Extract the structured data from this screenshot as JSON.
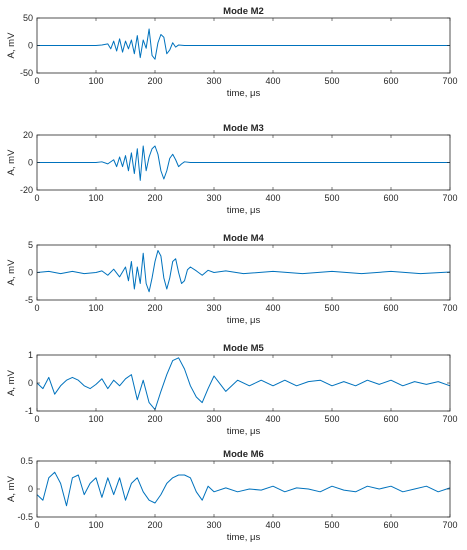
{
  "figure": {
    "line_color": "#0072BD"
  },
  "chart_data": [
    {
      "type": "line",
      "title": "Mode M2",
      "xlabel": "time, μs",
      "ylabel": "A, mV",
      "xlim": [
        0,
        700
      ],
      "ylim": [
        -50,
        50
      ],
      "xticks": [
        0,
        100,
        200,
        300,
        400,
        500,
        600,
        700
      ],
      "yticks": [
        -50,
        0,
        50
      ],
      "xtick_labels": [
        "0",
        "100",
        "200",
        "300",
        "400",
        "500",
        "600",
        "700"
      ],
      "ytick_labels": [
        "-50",
        "0",
        "50"
      ],
      "grid": false,
      "series": [
        {
          "x": [
            0,
            100,
            110,
            120,
            125,
            130,
            135,
            140,
            145,
            150,
            155,
            160,
            165,
            170,
            175,
            180,
            185,
            190,
            195,
            200,
            205,
            210,
            215,
            220,
            225,
            230,
            235,
            240,
            250,
            300,
            400,
            500,
            600,
            700
          ],
          "y": [
            0,
            0,
            1,
            3,
            -6,
            8,
            -10,
            12,
            -12,
            8,
            -6,
            10,
            -15,
            18,
            -22,
            10,
            -5,
            30,
            -18,
            -25,
            5,
            20,
            15,
            -15,
            -8,
            5,
            -3,
            1,
            0,
            0,
            0,
            0,
            0,
            0
          ]
        }
      ]
    },
    {
      "type": "line",
      "title": "Mode M3",
      "xlabel": "time, μs",
      "ylabel": "A, mV",
      "xlim": [
        0,
        700
      ],
      "ylim": [
        -20,
        20
      ],
      "xticks": [
        0,
        100,
        200,
        300,
        400,
        500,
        600,
        700
      ],
      "yticks": [
        -20,
        0,
        20
      ],
      "xtick_labels": [
        "0",
        "100",
        "200",
        "300",
        "400",
        "500",
        "600",
        "700"
      ],
      "ytick_labels": [
        "-20",
        "0",
        "20"
      ],
      "grid": false,
      "series": [
        {
          "x": [
            0,
            100,
            110,
            120,
            130,
            135,
            140,
            145,
            150,
            155,
            160,
            165,
            170,
            175,
            180,
            185,
            190,
            195,
            200,
            205,
            210,
            215,
            220,
            225,
            230,
            235,
            240,
            245,
            250,
            260,
            300,
            400,
            500,
            600,
            700
          ],
          "y": [
            0,
            0,
            0.5,
            -1,
            2,
            -3,
            4,
            -3,
            5,
            -6,
            7,
            -8,
            10,
            -13,
            12,
            -6,
            4,
            10,
            12,
            6,
            -6,
            -12,
            -6,
            3,
            6,
            2,
            -3,
            -1,
            0.5,
            0,
            0,
            0,
            0,
            0,
            0
          ]
        }
      ]
    },
    {
      "type": "line",
      "title": "Mode M4",
      "xlabel": "time, μs",
      "ylabel": "A, mV",
      "xlim": [
        0,
        700
      ],
      "ylim": [
        -5,
        5
      ],
      "xticks": [
        0,
        100,
        200,
        300,
        400,
        500,
        600,
        700
      ],
      "yticks": [
        -5,
        0,
        5
      ],
      "xtick_labels": [
        "0",
        "100",
        "200",
        "300",
        "400",
        "500",
        "600",
        "700"
      ],
      "ytick_labels": [
        "-5",
        "0",
        "5"
      ],
      "grid": false,
      "series": [
        {
          "x": [
            0,
            20,
            40,
            60,
            80,
            100,
            110,
            120,
            130,
            140,
            150,
            155,
            160,
            165,
            170,
            175,
            180,
            185,
            190,
            195,
            200,
            205,
            210,
            215,
            220,
            225,
            230,
            235,
            240,
            245,
            250,
            255,
            260,
            270,
            280,
            290,
            300,
            320,
            350,
            400,
            450,
            500,
            550,
            600,
            650,
            700
          ],
          "y": [
            0,
            0.2,
            -0.2,
            0.2,
            -0.2,
            0,
            0.3,
            -0.5,
            0.6,
            -0.8,
            1,
            -1.5,
            2,
            -3,
            1,
            -2,
            3.5,
            -2,
            -3.5,
            -1,
            2,
            4,
            3,
            -1,
            -3,
            -1,
            2,
            2.5,
            0,
            -2,
            -1.5,
            0.5,
            1,
            0.3,
            -0.5,
            0.4,
            0,
            0.3,
            -0.2,
            0.2,
            -0.2,
            0.2,
            -0.2,
            0.2,
            -0.2,
            0.1
          ]
        }
      ]
    },
    {
      "type": "line",
      "title": "Mode M5",
      "xlabel": "time, μs",
      "ylabel": "A, mV",
      "xlim": [
        0,
        700
      ],
      "ylim": [
        -1,
        1
      ],
      "xticks": [
        0,
        100,
        200,
        300,
        400,
        500,
        600,
        700
      ],
      "yticks": [
        -1,
        0,
        1
      ],
      "xtick_labels": [
        "0",
        "100",
        "200",
        "300",
        "400",
        "500",
        "600",
        "700"
      ],
      "ytick_labels": [
        "-1",
        "0",
        "1"
      ],
      "grid": false,
      "series": [
        {
          "x": [
            0,
            10,
            20,
            30,
            40,
            50,
            60,
            70,
            80,
            90,
            100,
            110,
            120,
            130,
            140,
            150,
            160,
            170,
            180,
            190,
            200,
            210,
            220,
            230,
            240,
            250,
            260,
            270,
            280,
            290,
            300,
            320,
            340,
            360,
            380,
            400,
            420,
            440,
            460,
            480,
            500,
            520,
            540,
            560,
            580,
            600,
            620,
            640,
            660,
            680,
            700
          ],
          "y": [
            0,
            -0.2,
            0.2,
            -0.4,
            -0.1,
            0.1,
            0.2,
            0.1,
            -0.1,
            -0.2,
            -0.05,
            0.15,
            -0.2,
            0.1,
            -0.1,
            0.15,
            0.3,
            -0.6,
            0.1,
            -0.7,
            -0.95,
            -0.3,
            0.3,
            0.8,
            0.9,
            0.5,
            -0.1,
            -0.5,
            -0.7,
            -0.2,
            0.25,
            -0.3,
            0.1,
            -0.1,
            0.1,
            -0.1,
            0.1,
            -0.1,
            0.05,
            0.1,
            -0.1,
            0.05,
            -0.1,
            0.1,
            -0.05,
            0.1,
            -0.1,
            0.05,
            -0.05,
            0.05,
            -0.1
          ]
        }
      ]
    },
    {
      "type": "line",
      "title": "Mode M6",
      "xlabel": "time, μs",
      "ylabel": "A, mV",
      "xlim": [
        0,
        700
      ],
      "ylim": [
        -0.5,
        0.5
      ],
      "xticks": [
        0,
        100,
        200,
        300,
        400,
        500,
        600,
        700
      ],
      "yticks": [
        -0.5,
        0,
        0.5
      ],
      "xtick_labels": [
        "0",
        "100",
        "200",
        "300",
        "400",
        "500",
        "600",
        "700"
      ],
      "ytick_labels": [
        "-0.5",
        "0",
        "0.5"
      ],
      "grid": false,
      "series": [
        {
          "x": [
            0,
            10,
            20,
            30,
            40,
            50,
            60,
            70,
            80,
            90,
            100,
            110,
            120,
            130,
            140,
            150,
            160,
            170,
            180,
            190,
            200,
            210,
            220,
            230,
            240,
            250,
            260,
            270,
            280,
            290,
            300,
            320,
            340,
            360,
            380,
            400,
            420,
            440,
            460,
            480,
            500,
            520,
            540,
            560,
            580,
            600,
            620,
            640,
            660,
            680,
            700
          ],
          "y": [
            -0.1,
            -0.2,
            0.2,
            0.3,
            0.1,
            -0.3,
            0.2,
            0.25,
            -0.1,
            0.1,
            0.2,
            -0.15,
            0.2,
            -0.1,
            0.2,
            -0.2,
            0.1,
            0.2,
            -0.05,
            -0.2,
            -0.25,
            -0.1,
            0.1,
            0.2,
            0.25,
            0.25,
            0.2,
            -0.05,
            -0.2,
            0.05,
            -0.05,
            0.02,
            -0.05,
            0,
            -0.02,
            0.05,
            -0.05,
            0.02,
            0,
            -0.05,
            0.05,
            -0.02,
            -0.05,
            0.05,
            0,
            0.05,
            -0.05,
            0,
            0.05,
            -0.05,
            0.02
          ]
        }
      ]
    }
  ]
}
